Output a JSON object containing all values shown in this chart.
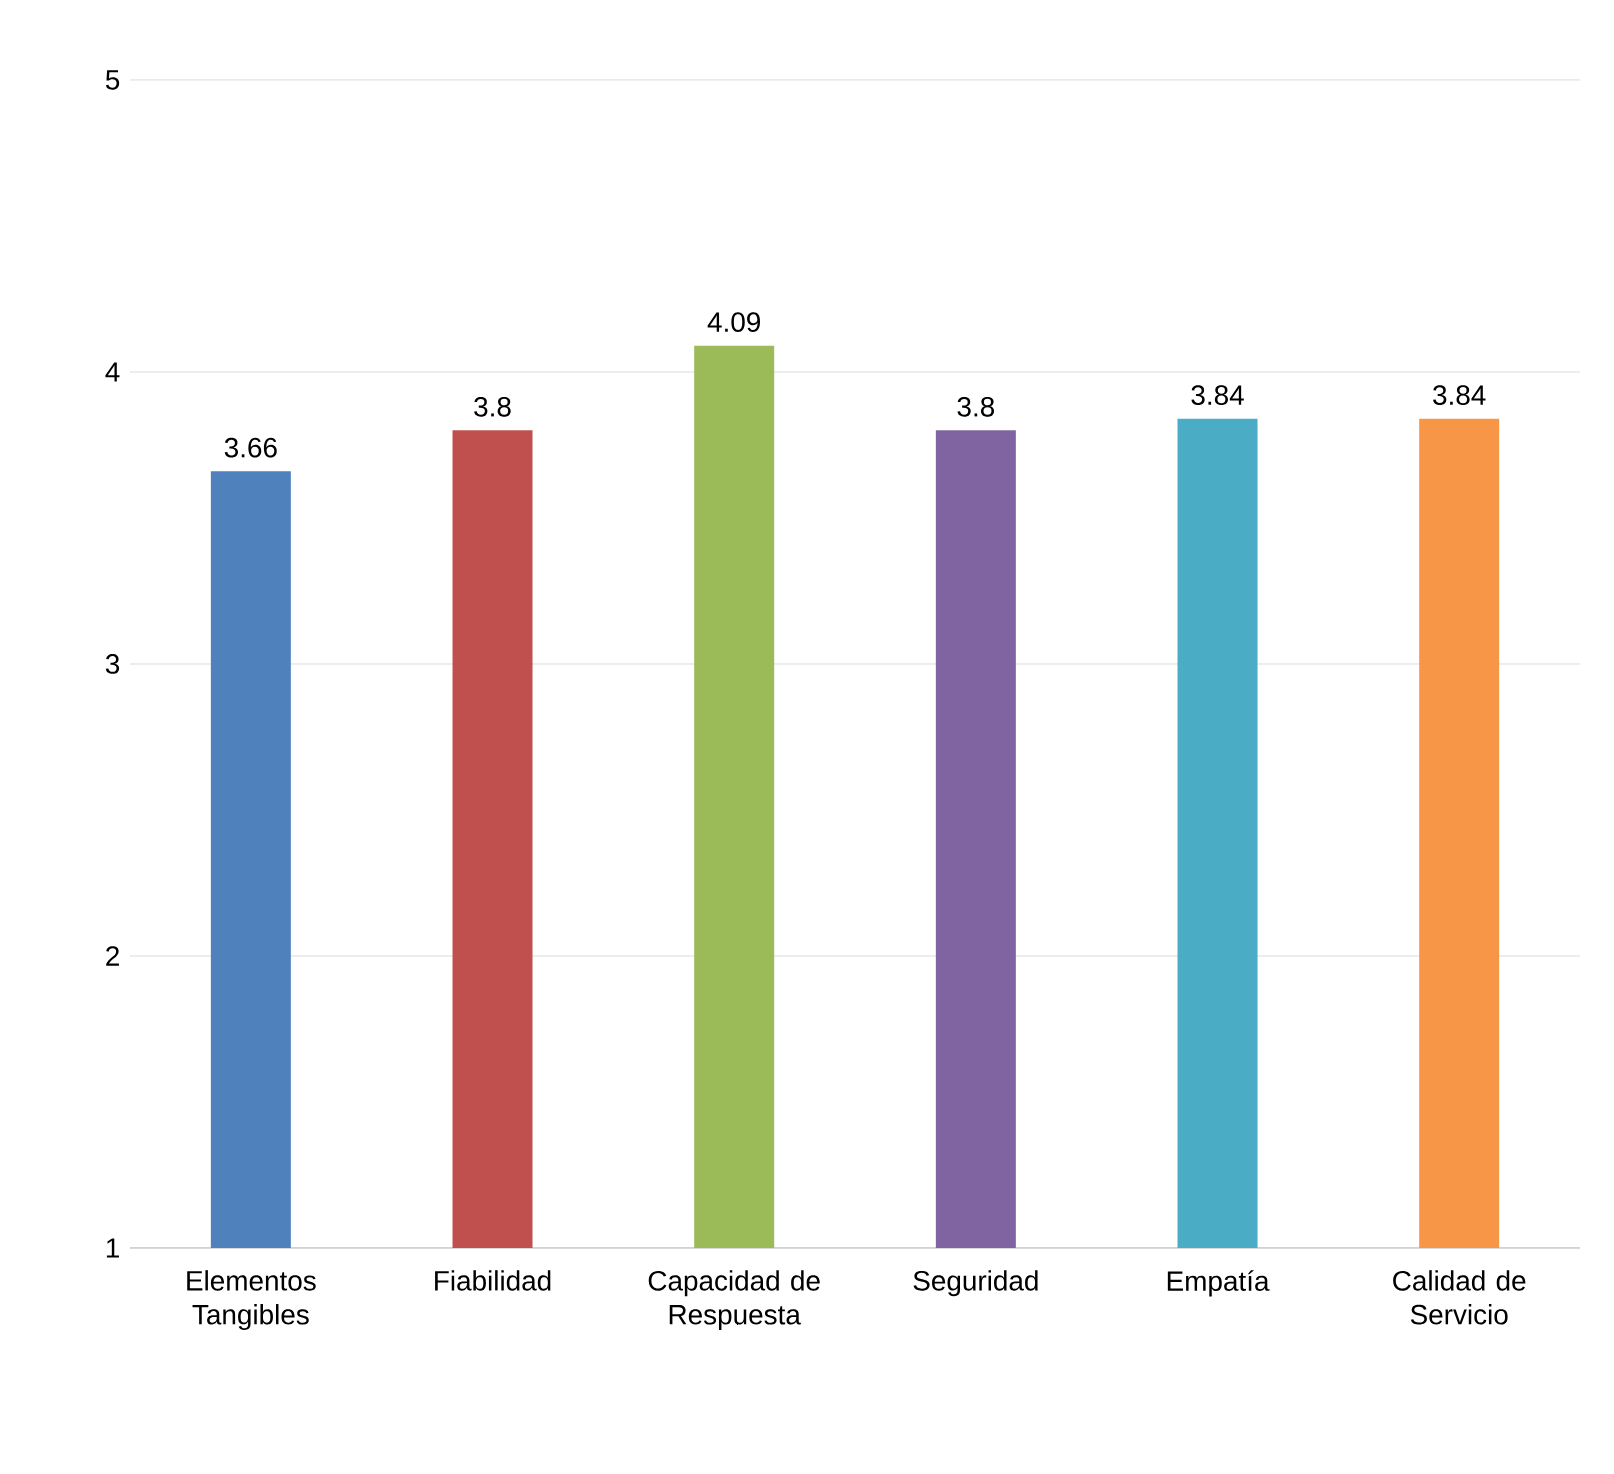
{
  "chart_data": {
    "type": "bar",
    "categories": [
      "Elementos Tangibles",
      "Fiabilidad",
      "Capacidad de Respuesta",
      "Seguridad",
      "Empatía",
      "Calidad de Servicio"
    ],
    "values": [
      3.66,
      3.8,
      4.09,
      3.8,
      3.84,
      3.84
    ],
    "colors": [
      "#4f81bd",
      "#c0504d",
      "#9bbb59",
      "#8064a2",
      "#4bacc6",
      "#f79646"
    ],
    "ylim": [
      1,
      5
    ],
    "yticks": [
      1,
      2,
      3,
      4,
      5
    ],
    "grid": "y",
    "data_labels": true
  }
}
